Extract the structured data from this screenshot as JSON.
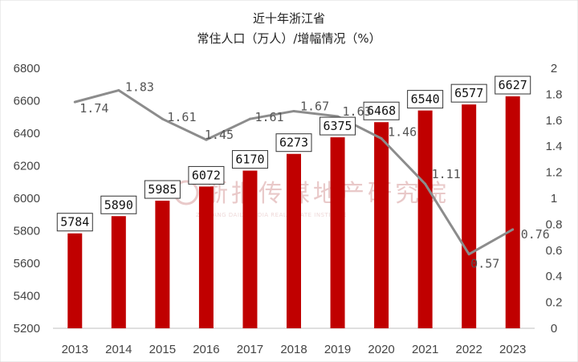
{
  "chart_data": {
    "type": "bar+line",
    "title": "近十年浙江省",
    "subtitle": "常住人口（万人）/增幅情况（%）",
    "categories": [
      "2013",
      "2014",
      "2015",
      "2016",
      "2017",
      "2018",
      "2019",
      "2020",
      "2021",
      "2022",
      "2023"
    ],
    "series": [
      {
        "type": "bar",
        "axis": "left",
        "values": [
          5784,
          5890,
          5985,
          6072,
          6170,
          6273,
          6375,
          6468,
          6540,
          6577,
          6627
        ]
      },
      {
        "type": "line",
        "axis": "right",
        "values": [
          1.74,
          1.83,
          1.61,
          1.45,
          1.61,
          1.67,
          1.63,
          1.46,
          1.11,
          0.57,
          0.76
        ]
      }
    ],
    "y_left": {
      "min": 5200,
      "max": 6800,
      "ticks": [
        "5200",
        "5400",
        "5600",
        "5800",
        "6000",
        "6200",
        "6400",
        "6600",
        "6800"
      ]
    },
    "y_right": {
      "min": 0,
      "max": 2,
      "ticks": [
        "0",
        "0.2",
        "0.4",
        "0.6",
        "0.8",
        "1",
        "1.2",
        "1.4",
        "1.6",
        "1.8",
        "2"
      ]
    },
    "line_labels": [
      "1.74",
      "1.83",
      "1.61",
      "1.45",
      "1.61",
      "1.67",
      "1.63",
      "1.46",
      "1.11",
      "0.57",
      "0.76"
    ],
    "colors": {
      "bar": "#c00000",
      "line": "#8c8c8c"
    },
    "grid": false,
    "watermark": {
      "text": "浙报传媒地产研究院",
      "subtext": "ZHEJIANG DAILY MEDIA REAL ESTATE INSTITUTE"
    }
  }
}
